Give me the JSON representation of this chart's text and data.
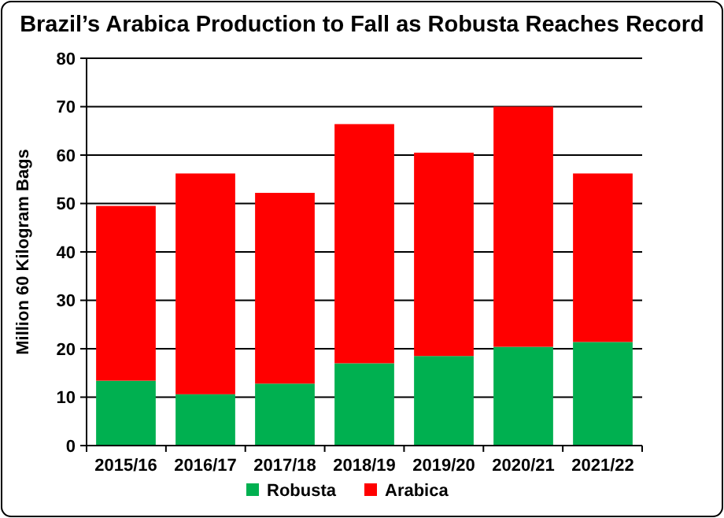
{
  "chart_data": {
    "type": "bar",
    "title": "Brazil’s Arabica Production to Fall as Robusta Reaches Record",
    "ylabel": "Million 60 Kilogram Bags",
    "categories": [
      "2015/16",
      "2016/17",
      "2017/18",
      "2018/19",
      "2019/20",
      "2020/21",
      "2021/22"
    ],
    "series": [
      {
        "name": "Robusta",
        "color": "#00b050",
        "values": [
          13.4,
          10.6,
          12.8,
          17.0,
          18.5,
          20.4,
          21.4
        ]
      },
      {
        "name": "Arabica",
        "color": "#ff0000",
        "values": [
          36.1,
          45.6,
          39.4,
          49.4,
          42.0,
          49.6,
          34.8
        ]
      }
    ],
    "stacked": true,
    "ylim": [
      0,
      80
    ],
    "yticks": [
      0,
      10,
      20,
      30,
      40,
      50,
      60,
      70,
      80
    ],
    "grid": "y",
    "legend": "bottom"
  }
}
